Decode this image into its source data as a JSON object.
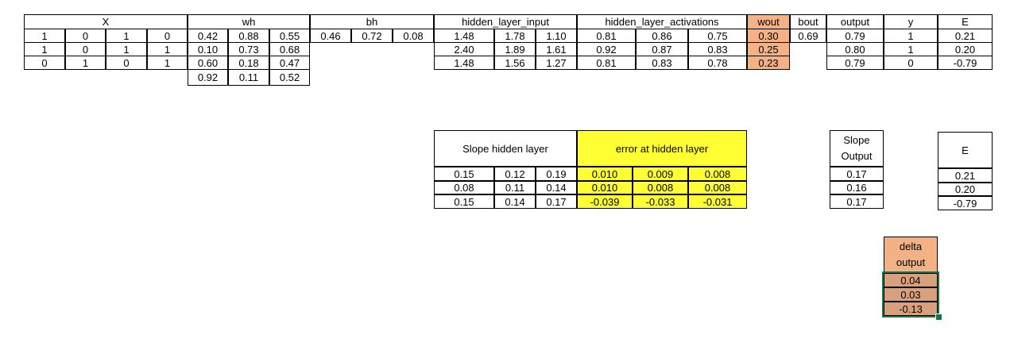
{
  "main_table": {
    "headers": {
      "x": "X",
      "wh": "wh",
      "bh": "bh",
      "hidden_layer_input": "hidden_layer_input",
      "hidden_layer_activations": "hidden_layer_activations",
      "wout": "wout",
      "bout": "bout",
      "output": "output",
      "y": "y",
      "e": "E"
    },
    "x": [
      [
        "1",
        "0",
        "1",
        "0"
      ],
      [
        "1",
        "0",
        "1",
        "1"
      ],
      [
        "0",
        "1",
        "0",
        "1"
      ]
    ],
    "wh": [
      [
        "0.42",
        "0.88",
        "0.55"
      ],
      [
        "0.10",
        "0.73",
        "0.68"
      ],
      [
        "0.60",
        "0.18",
        "0.47"
      ],
      [
        "0.92",
        "0.11",
        "0.52"
      ]
    ],
    "bh": [
      "0.46",
      "0.72",
      "0.08"
    ],
    "hidden_layer_input": [
      [
        "1.48",
        "1.78",
        "1.10"
      ],
      [
        "2.40",
        "1.89",
        "1.61"
      ],
      [
        "1.48",
        "1.56",
        "1.27"
      ]
    ],
    "hidden_layer_activations": [
      [
        "0.81",
        "0.86",
        "0.75"
      ],
      [
        "0.92",
        "0.87",
        "0.83"
      ],
      [
        "0.81",
        "0.83",
        "0.78"
      ]
    ],
    "wout": [
      "0.30",
      "0.25",
      "0.23"
    ],
    "bout": "0.69",
    "output": [
      "0.79",
      "0.80",
      "0.79"
    ],
    "y": [
      "1",
      "1",
      "0"
    ],
    "e": [
      "0.21",
      "0.20",
      "-0.79"
    ]
  },
  "slope_hidden": {
    "header": "Slope hidden layer",
    "rows": [
      [
        "0.15",
        "0.12",
        "0.19"
      ],
      [
        "0.08",
        "0.11",
        "0.14"
      ],
      [
        "0.15",
        "0.14",
        "0.17"
      ]
    ]
  },
  "error_hidden": {
    "header": "error at hidden layer",
    "rows": [
      [
        "0.010",
        "0.009",
        "0.008"
      ],
      [
        "0.010",
        "0.008",
        "0.008"
      ],
      [
        "-0.039",
        "-0.033",
        "-0.031"
      ]
    ]
  },
  "slope_output": {
    "header": "Slope Output",
    "values": [
      "0.17",
      "0.16",
      "0.17"
    ]
  },
  "e_table": {
    "header": "E",
    "values": [
      "0.21",
      "0.20",
      "-0.79"
    ]
  },
  "delta_output": {
    "header": "delta output",
    "values": [
      "0.04",
      "0.03",
      "-0.13"
    ]
  },
  "colors": {
    "wout_fill": "#f4b183",
    "error_fill": "#ffff33",
    "delta_header_fill": "#f4b183",
    "delta_value_fill": "#d9a07c",
    "selection_border": "#1f7244"
  }
}
